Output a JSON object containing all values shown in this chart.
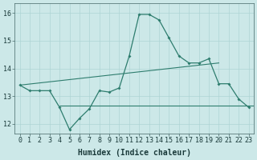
{
  "xlabel": "Humidex (Indice chaleur)",
  "background_color": "#cce8e8",
  "line_color": "#2e7d6e",
  "xlim": [
    -0.5,
    23.5
  ],
  "ylim": [
    11.65,
    16.35
  ],
  "yticks": [
    12,
    13,
    14,
    15,
    16
  ],
  "xticks": [
    0,
    1,
    2,
    3,
    4,
    5,
    6,
    7,
    8,
    9,
    10,
    11,
    12,
    13,
    14,
    15,
    16,
    17,
    18,
    19,
    20,
    21,
    22,
    23
  ],
  "curve_x": [
    0,
    1,
    2,
    3,
    4,
    5,
    6,
    7,
    8,
    9,
    10,
    11,
    12,
    13,
    14,
    15,
    16,
    17,
    18,
    19,
    20,
    21,
    22,
    23
  ],
  "curve_y": [
    13.4,
    13.2,
    13.2,
    13.2,
    12.6,
    11.8,
    12.2,
    12.55,
    13.2,
    13.15,
    13.3,
    14.45,
    15.95,
    15.95,
    15.75,
    15.1,
    14.45,
    14.2,
    14.2,
    14.35,
    13.45,
    13.45,
    12.9,
    12.6
  ],
  "trend_x": [
    0,
    20
  ],
  "trend_y": [
    13.4,
    14.2
  ],
  "flat_x_start": 4,
  "flat_y": 12.65,
  "grid_color": "#aed4d4",
  "tick_fontsize": 6,
  "xlabel_fontsize": 7,
  "marker_size": 2.0
}
